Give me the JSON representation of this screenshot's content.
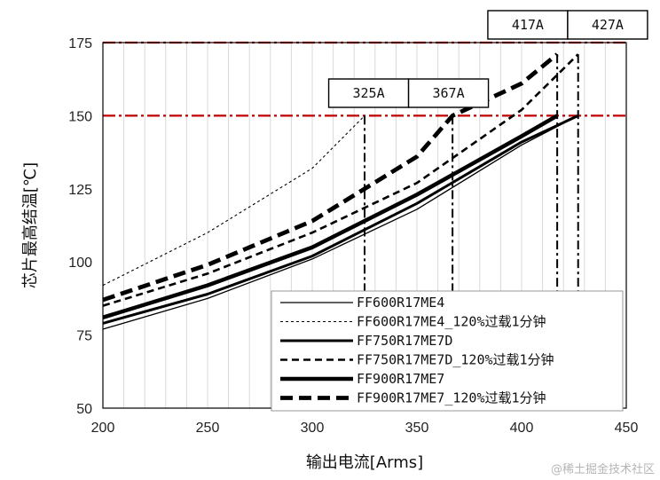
{
  "watermark": "@稀土掘金技术社区",
  "colors": {
    "limit_line": "#c00000",
    "series": "#000000",
    "grid": "#d9d9d9"
  },
  "chart_data": {
    "type": "line",
    "xlabel": "输出电流[Arms]",
    "ylabel": "芯片最高结温[℃]",
    "xlim": [
      200,
      450
    ],
    "ylim": [
      50,
      175
    ],
    "xticks": [
      "200",
      "250",
      "300",
      "350",
      "400",
      "450"
    ],
    "yticks": [
      "50",
      "75",
      "100",
      "125",
      "150",
      "175"
    ],
    "grid": true,
    "legend_position": "bottom-right",
    "limit_lines": [
      150,
      175
    ],
    "series": [
      {
        "name": "FF600R17ME4",
        "style": "thin-solid",
        "x": [
          200,
          250,
          300,
          350,
          400,
          427
        ],
        "y": [
          77,
          87.5,
          101,
          118,
          140,
          150
        ]
      },
      {
        "name": "FF600R17ME4_120%过载1分钟",
        "style": "thin-dashed",
        "x": [
          200,
          250,
          300,
          325
        ],
        "y": [
          92,
          110,
          132,
          150
        ]
      },
      {
        "name": "FF750R17ME7D",
        "style": "medium-solid",
        "x": [
          200,
          250,
          300,
          350,
          400,
          427
        ],
        "y": [
          79,
          89,
          102,
          120,
          141,
          150
        ]
      },
      {
        "name": "FF750R17ME7D_120%过载1分钟",
        "style": "medium-dashed",
        "x": [
          200,
          250,
          300,
          350,
          400,
          427
        ],
        "y": [
          85,
          96,
          110,
          127,
          152,
          171
        ]
      },
      {
        "name": "FF900R17ME7",
        "style": "thick-solid",
        "x": [
          200,
          250,
          300,
          350,
          400,
          417
        ],
        "y": [
          81,
          92,
          105,
          123,
          143,
          150
        ]
      },
      {
        "name": "FF900R17ME7_120%过载1分钟",
        "style": "thick-dashed",
        "x": [
          200,
          250,
          300,
          350,
          367,
          400,
          417
        ],
        "y": [
          87,
          99,
          114,
          136,
          150,
          161,
          171
        ]
      }
    ],
    "annotations": [
      {
        "label": "325A",
        "x": 325
      },
      {
        "label": "367A",
        "x": 367
      },
      {
        "label": "417A",
        "x": 417
      },
      {
        "label": "427A",
        "x": 427
      }
    ]
  }
}
